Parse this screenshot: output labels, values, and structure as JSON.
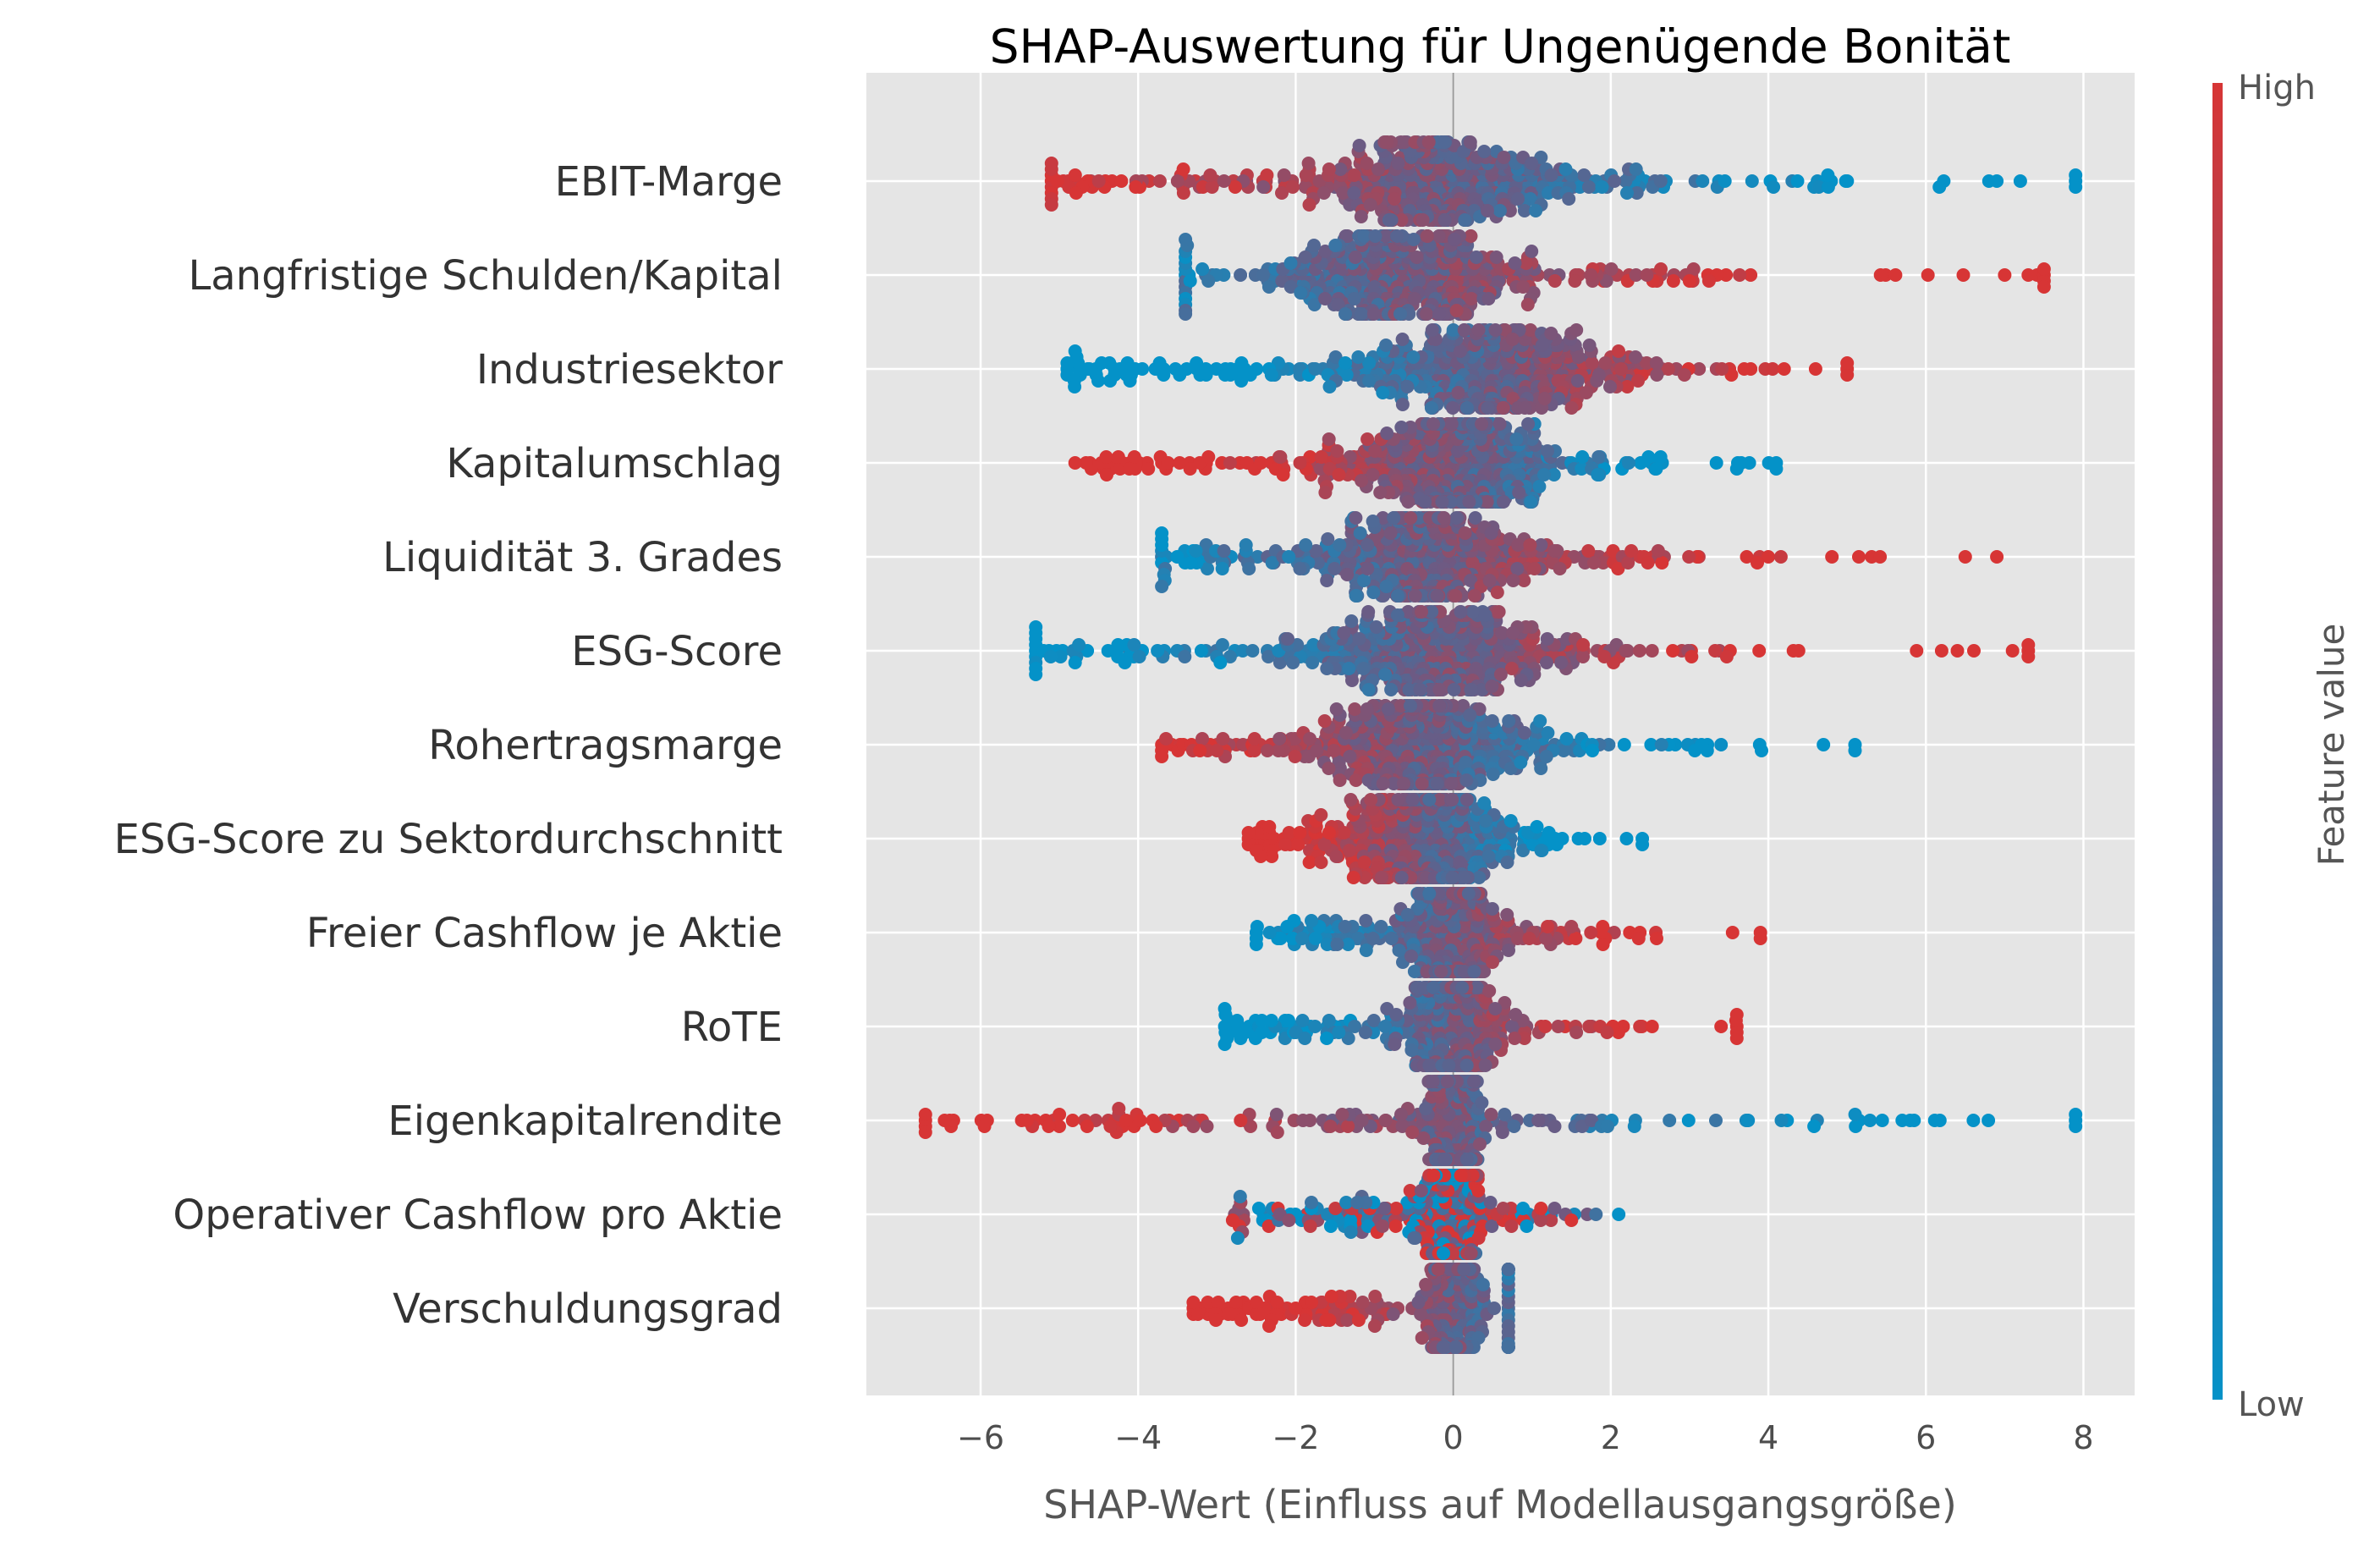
{
  "chart_data": {
    "type": "scatter",
    "title": "SHAP-Auswertung für Ungenügende Bonität",
    "xlabel": "SHAP-Wert (Einfluss auf Modellausgangsgröße)",
    "ylabel": "",
    "xlim": [
      -7.45,
      8.65
    ],
    "xticks": [
      -6,
      -4,
      -2,
      0,
      2,
      4,
      6,
      8
    ],
    "xtick_labels": [
      "−6",
      "−4",
      "−2",
      "0",
      "2",
      "4",
      "6",
      "8"
    ],
    "grid": true,
    "colorbar": {
      "title": "Feature value",
      "high_label": "High",
      "low_label": "Low",
      "high_color": "#d73535",
      "low_color": "#0492c8",
      "mid_color": "#6d5a83"
    },
    "features": [
      {
        "name": "EBIT-Marge",
        "min": -5.1,
        "max": 7.9,
        "spread": 1.5,
        "center": -0.1,
        "width": 0.6,
        "low_side": "right",
        "extremes": [
          -5.1,
          -4.5,
          6.8,
          6.9,
          7.9
        ]
      },
      {
        "name": "Langfristige Schulden/Kapital",
        "min": -3.4,
        "max": 7.5,
        "spread": 1.3,
        "center": -0.6,
        "width": 0.55,
        "low_side": "left",
        "extremes": [
          -3.4,
          7.0,
          7.3,
          7.5
        ]
      },
      {
        "name": "Industriesektor",
        "min": -4.9,
        "max": 5.0,
        "spread": 1.5,
        "center": 0.6,
        "width": 0.55,
        "low_side": "left",
        "extremes": [
          -4.9,
          -4.8,
          4.2,
          5.0
        ]
      },
      {
        "name": "Kapitalumschlag",
        "min": -4.8,
        "max": 4.1,
        "spread": 1.4,
        "center": 0.0,
        "width": 0.5,
        "low_side": "right",
        "extremes": [
          -4.8,
          -4.4,
          3.6,
          4.1
        ]
      },
      {
        "name": "Liquidität 3. Grades",
        "min": -3.7,
        "max": 6.9,
        "spread": 1.4,
        "center": -0.4,
        "width": 0.5,
        "low_side": "left",
        "extremes": [
          -3.7,
          6.5,
          6.9
        ]
      },
      {
        "name": "ESG-Score",
        "min": -5.3,
        "max": 7.3,
        "spread": 1.4,
        "center": -0.2,
        "width": 0.55,
        "low_side": "left",
        "extremes": [
          -5.3,
          -4.8,
          6.2,
          7.1,
          7.3
        ]
      },
      {
        "name": "Rohertragsmarge",
        "min": -3.7,
        "max": 5.1,
        "spread": 1.2,
        "center": -0.4,
        "width": 0.5,
        "low_side": "right",
        "extremes": [
          -3.7,
          -3.0,
          3.4,
          5.1
        ]
      },
      {
        "name": "ESG-Score zu Sektordurchschnitt",
        "min": -2.6,
        "max": 2.4,
        "spread": 0.9,
        "center": -0.3,
        "width": 0.45,
        "low_side": "right",
        "extremes": [
          -2.6,
          -2.5,
          2.2,
          2.4
        ]
      },
      {
        "name": "Freier Cashflow je Aktie",
        "min": -2.5,
        "max": 3.9,
        "spread": 0.45,
        "center": 0.0,
        "width": 0.45,
        "low_side": "left",
        "extremes": [
          -2.5,
          -1.8,
          1.5,
          3.9
        ]
      },
      {
        "name": "RoTE",
        "min": -2.9,
        "max": 3.6,
        "spread": 0.5,
        "center": 0.0,
        "width": 0.45,
        "low_side": "left",
        "extremes": [
          -2.9,
          -2.7,
          3.4,
          3.6
        ]
      },
      {
        "name": "Eigenkapitalrendite",
        "min": -6.7,
        "max": 7.9,
        "spread": 0.3,
        "center": 0.0,
        "width": 0.45,
        "low_side": "right",
        "extremes": [
          -6.7,
          -5.0,
          -3.3,
          -2.7,
          2.3,
          5.7,
          5.8,
          7.9
        ]
      },
      {
        "name": "Operativer Cashflow pro Aktie",
        "min": -2.8,
        "max": 2.1,
        "spread": 0.35,
        "center": 0.0,
        "width": 0.4,
        "low_side": "mixed",
        "extremes": [
          -2.8,
          -1.3,
          1.5,
          2.1
        ]
      },
      {
        "name": "Verschuldungsgrad",
        "min": -3.3,
        "max": 0.7,
        "spread": 0.25,
        "center": 0.0,
        "width": 0.4,
        "low_side": "right",
        "extremes": [
          -3.3,
          -2.5,
          -2.0,
          -1.8,
          -1.2,
          0.7
        ]
      }
    ]
  }
}
